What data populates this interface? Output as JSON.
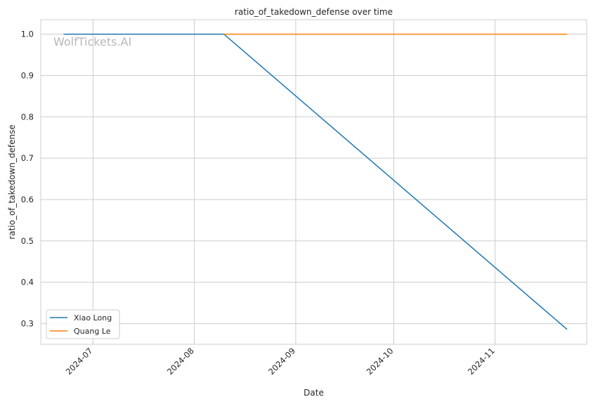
{
  "chart_data": {
    "type": "line",
    "title": "ratio_of_takedown_defense over time",
    "xlabel": "Date",
    "ylabel": "ratio_of_takedown_defense",
    "x_ticks": [
      "2024-07",
      "2024-08",
      "2024-09",
      "2024-10",
      "2024-11"
    ],
    "y_ticks": [
      "0.3",
      "0.4",
      "0.5",
      "0.6",
      "0.7",
      "0.8",
      "0.9",
      "1.0"
    ],
    "xlim": [
      "2024-06-15",
      "2024-11-29"
    ],
    "ylim": [
      0.25,
      1.035
    ],
    "grid": true,
    "legend_position": "lower-left",
    "series": [
      {
        "name": "Xiao Long",
        "color": "#1f77b4",
        "x": [
          "2024-06-22",
          "2024-08-10",
          "2024-11-23"
        ],
        "values": [
          1.0,
          1.0,
          0.286
        ]
      },
      {
        "name": "Quang Le",
        "color": "#ff7f0e",
        "x": [
          "2024-08-10",
          "2024-11-23"
        ],
        "values": [
          1.0,
          1.0
        ]
      }
    ]
  },
  "watermark": "WolfTickets.AI"
}
